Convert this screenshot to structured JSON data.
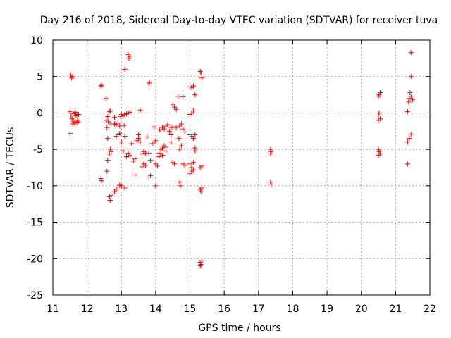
{
  "chart_data": {
    "type": "scatter",
    "title": "Day 216 of 2018, Sidereal Day-to-day VTEC variation (SDTVAR) for receiver tuva",
    "xlabel": "GPS time / hours",
    "ylabel": "SDTVAR / TECUs",
    "xlim": [
      11,
      22
    ],
    "ylim": [
      -25,
      10
    ],
    "xticks": [
      11,
      12,
      13,
      14,
      15,
      16,
      17,
      18,
      19,
      20,
      21,
      22
    ],
    "yticks": [
      -25,
      -20,
      -15,
      -10,
      -5,
      0,
      5,
      10
    ],
    "xtick_labels": [
      "11",
      "12",
      "13",
      "14",
      "15",
      "16",
      "17",
      "18",
      "19",
      "20",
      "21",
      "22"
    ],
    "ytick_labels": [
      "-25",
      "-20",
      "-15",
      "-10",
      "-5",
      "0",
      "5",
      "10"
    ],
    "grid": true,
    "marker": "+",
    "color": "#ff0000",
    "series": [
      {
        "name": "SDTVAR",
        "points": [
          [
            11.52,
            5.2
          ],
          [
            11.55,
            4.8
          ],
          [
            11.58,
            5.0
          ],
          [
            11.5,
            0.2
          ],
          [
            11.53,
            -0.3
          ],
          [
            11.56,
            -0.8
          ],
          [
            11.6,
            -1.2
          ],
          [
            11.62,
            -0.1
          ],
          [
            11.65,
            0.1
          ],
          [
            11.68,
            -0.4
          ],
          [
            11.7,
            -1.3
          ],
          [
            11.72,
            -1.0
          ],
          [
            11.75,
            -0.2
          ],
          [
            11.58,
            -1.5
          ],
          [
            11.64,
            -1.4
          ],
          [
            11.5,
            -2.8
          ],
          [
            11.66,
            0.0
          ],
          [
            11.74,
            -1.2
          ],
          [
            12.4,
            3.7
          ],
          [
            12.42,
            3.8
          ],
          [
            12.55,
            2.0
          ],
          [
            12.6,
            -0.5
          ],
          [
            12.62,
            -1.2
          ],
          [
            12.65,
            0.2
          ],
          [
            12.68,
            0.3
          ],
          [
            12.58,
            -2.0
          ],
          [
            12.7,
            -1.5
          ],
          [
            12.55,
            -1.0
          ],
          [
            12.6,
            -3.5
          ],
          [
            12.65,
            -5.6
          ],
          [
            12.68,
            -5.0
          ],
          [
            12.7,
            -5.3
          ],
          [
            12.6,
            -6.5
          ],
          [
            12.58,
            -8.0
          ],
          [
            12.4,
            -9.0
          ],
          [
            12.42,
            -9.3
          ],
          [
            12.65,
            -11.5
          ],
          [
            12.67,
            -12.0
          ],
          [
            12.7,
            -11.3
          ],
          [
            12.8,
            -10.8
          ],
          [
            12.85,
            -10.5
          ],
          [
            12.9,
            -10.2
          ],
          [
            12.95,
            -9.9
          ],
          [
            13.0,
            -10.0
          ],
          [
            13.1,
            -10.3
          ],
          [
            12.8,
            -1.5
          ],
          [
            12.85,
            -1.6
          ],
          [
            12.9,
            -1.4
          ],
          [
            12.95,
            -1.8
          ],
          [
            12.98,
            -0.5
          ],
          [
            13.05,
            -0.4
          ],
          [
            13.1,
            -0.2
          ],
          [
            13.15,
            -0.1
          ],
          [
            13.2,
            0.0
          ],
          [
            13.25,
            0.1
          ],
          [
            12.8,
            -0.6
          ],
          [
            13.0,
            -0.2
          ],
          [
            13.08,
            -1.7
          ],
          [
            12.85,
            -3.2
          ],
          [
            12.9,
            -3.0
          ],
          [
            12.95,
            -2.8
          ],
          [
            13.0,
            -4.0
          ],
          [
            13.05,
            -5.2
          ],
          [
            13.1,
            -3.2
          ],
          [
            13.15,
            -6.0
          ],
          [
            13.2,
            -5.5
          ],
          [
            13.25,
            -5.8
          ],
          [
            13.3,
            -4.2
          ],
          [
            13.35,
            -6.6
          ],
          [
            13.4,
            -6.3
          ],
          [
            13.45,
            -3.8
          ],
          [
            13.5,
            -3.5
          ],
          [
            13.55,
            -4.0
          ],
          [
            13.1,
            6.0
          ],
          [
            13.2,
            8.0
          ],
          [
            13.22,
            7.5
          ],
          [
            13.25,
            7.8
          ],
          [
            13.55,
            0.4
          ],
          [
            13.6,
            -5.6
          ],
          [
            13.65,
            -5.3
          ],
          [
            13.7,
            -5.5
          ],
          [
            13.6,
            -7.4
          ],
          [
            13.65,
            -7.0
          ],
          [
            13.7,
            -7.2
          ],
          [
            13.5,
            -3.0
          ],
          [
            13.4,
            -8.5
          ],
          [
            13.8,
            4.0
          ],
          [
            13.82,
            4.2
          ],
          [
            13.85,
            -6.5
          ],
          [
            13.8,
            -5.5
          ],
          [
            13.8,
            -8.8
          ],
          [
            13.85,
            -8.6
          ],
          [
            13.9,
            -4.2
          ],
          [
            13.95,
            -4.0
          ],
          [
            14.0,
            -3.8
          ],
          [
            14.0,
            -7.0
          ],
          [
            14.05,
            -7.3
          ],
          [
            13.95,
            -1.9
          ],
          [
            14.0,
            -10.0
          ],
          [
            13.75,
            -3.3
          ],
          [
            14.1,
            -5.5
          ],
          [
            14.15,
            -5.0
          ],
          [
            14.2,
            -4.8
          ],
          [
            14.25,
            -4.5
          ],
          [
            14.3,
            -5.2
          ],
          [
            14.12,
            -2.3
          ],
          [
            14.2,
            -2.0
          ],
          [
            14.25,
            -2.2
          ],
          [
            14.3,
            -1.8
          ],
          [
            14.35,
            -1.6
          ],
          [
            14.4,
            -2.5
          ],
          [
            14.45,
            -2.0
          ],
          [
            14.15,
            -5.6
          ],
          [
            14.3,
            -4.7
          ],
          [
            14.1,
            -6.0
          ],
          [
            14.2,
            -5.8
          ],
          [
            14.5,
            -6.8
          ],
          [
            14.55,
            -7.0
          ],
          [
            14.5,
            1.2
          ],
          [
            14.55,
            0.8
          ],
          [
            14.6,
            0.5
          ],
          [
            14.5,
            -1.9
          ],
          [
            14.45,
            -3.0
          ],
          [
            14.45,
            -4.0
          ],
          [
            14.6,
            -2.0
          ],
          [
            14.65,
            2.3
          ],
          [
            14.7,
            -1.8
          ],
          [
            14.75,
            -1.5
          ],
          [
            14.7,
            -9.5
          ],
          [
            14.72,
            -10.0
          ],
          [
            14.68,
            -3.5
          ],
          [
            14.7,
            -5.0
          ],
          [
            14.75,
            -4.5
          ],
          [
            14.8,
            -2.2
          ],
          [
            14.85,
            -2.6
          ],
          [
            14.8,
            -7.0
          ],
          [
            14.85,
            -7.2
          ],
          [
            14.8,
            2.2
          ],
          [
            15.0,
            -0.2
          ],
          [
            15.05,
            0.0
          ],
          [
            15.1,
            0.3
          ],
          [
            15.0,
            3.6
          ],
          [
            15.05,
            3.5
          ],
          [
            15.1,
            3.7
          ],
          [
            15.15,
            2.5
          ],
          [
            15.0,
            -3.0
          ],
          [
            15.05,
            -3.2
          ],
          [
            15.1,
            -3.5
          ],
          [
            15.15,
            -3.0
          ],
          [
            15.0,
            -7.0
          ],
          [
            15.05,
            -7.5
          ],
          [
            15.1,
            -6.8
          ],
          [
            15.15,
            -4.8
          ],
          [
            15.15,
            -5.2
          ],
          [
            15.0,
            -8.3
          ],
          [
            15.05,
            -8.0
          ],
          [
            15.1,
            -7.8
          ],
          [
            15.3,
            5.7
          ],
          [
            15.32,
            5.5
          ],
          [
            15.35,
            4.8
          ],
          [
            15.3,
            -7.5
          ],
          [
            15.35,
            -7.3
          ],
          [
            15.3,
            -10.5
          ],
          [
            15.32,
            -10.8
          ],
          [
            15.35,
            -10.3
          ],
          [
            15.3,
            -20.5
          ],
          [
            15.32,
            -20.8
          ],
          [
            15.35,
            -20.3
          ],
          [
            15.3,
            -21.0
          ],
          [
            17.35,
            -5.0
          ],
          [
            17.37,
            -5.3
          ],
          [
            17.35,
            -5.6
          ],
          [
            17.35,
            -9.5
          ],
          [
            17.37,
            -9.8
          ],
          [
            20.5,
            -0.3
          ],
          [
            20.52,
            0.0
          ],
          [
            20.55,
            -0.8
          ],
          [
            20.5,
            -1.0
          ],
          [
            20.52,
            2.5
          ],
          [
            20.55,
            2.8
          ],
          [
            20.5,
            2.3
          ],
          [
            20.5,
            -5.0
          ],
          [
            20.52,
            -5.3
          ],
          [
            20.55,
            -5.6
          ],
          [
            20.5,
            -5.8
          ],
          [
            21.35,
            0.2
          ],
          [
            21.38,
            1.5
          ],
          [
            21.4,
            2.0
          ],
          [
            21.45,
            2.3
          ],
          [
            21.42,
            2.8
          ],
          [
            21.45,
            5.0
          ],
          [
            21.45,
            8.3
          ],
          [
            21.5,
            1.8
          ],
          [
            21.35,
            -4.0
          ],
          [
            21.4,
            -3.5
          ],
          [
            21.45,
            -2.9
          ],
          [
            21.35,
            -7.0
          ]
        ]
      }
    ]
  }
}
